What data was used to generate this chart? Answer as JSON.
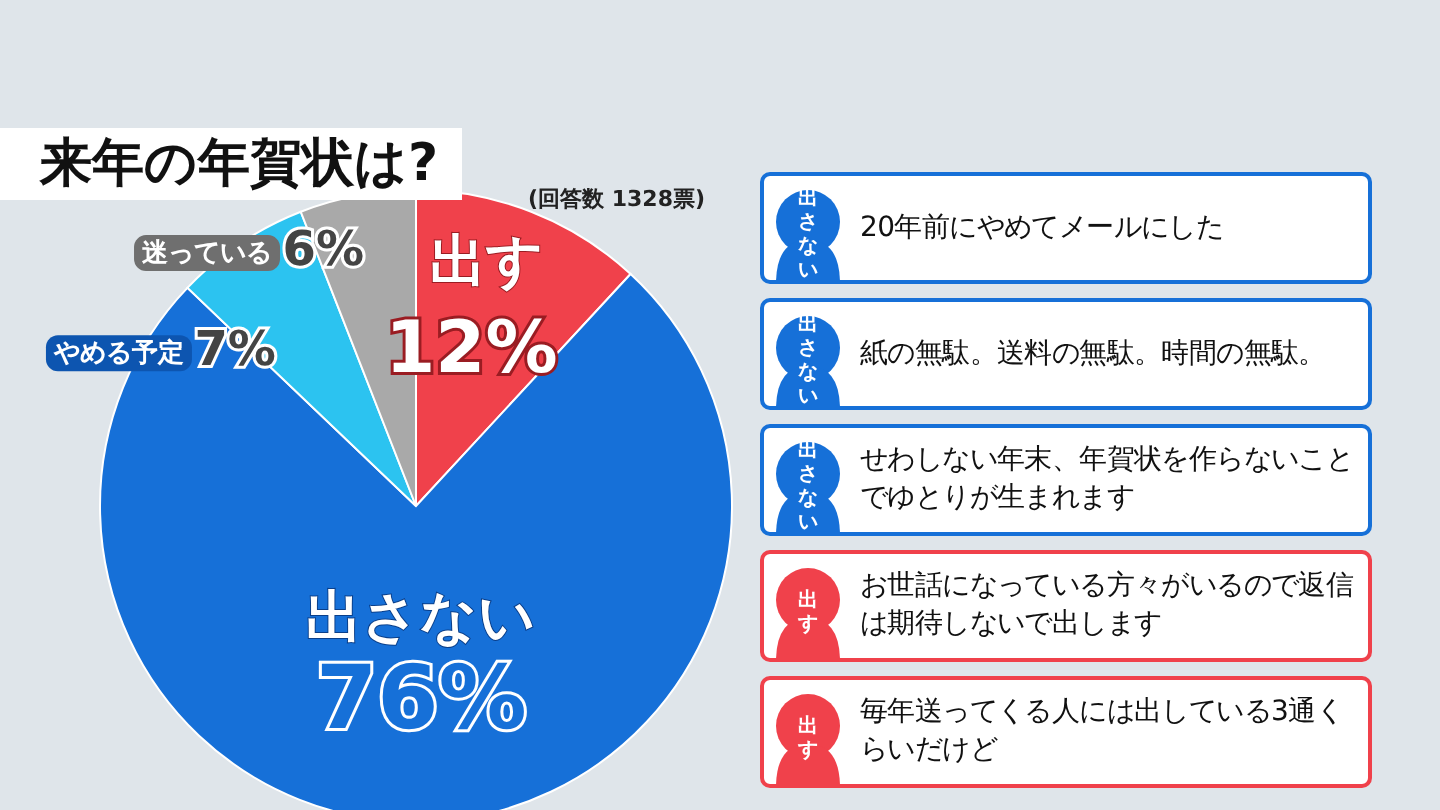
{
  "chart_data": [
    {
      "type": "pie",
      "title": "来年の年賀状は?",
      "subtitle": "(回答数 1328票)",
      "categories": [
        "出す",
        "出さない",
        "やめる予定",
        "迷っている"
      ],
      "values": [
        12,
        76,
        7,
        6
      ],
      "value_labels": [
        "12%",
        "76%",
        "7%",
        "6%"
      ],
      "colors": [
        "#f0414b",
        "#1670d8",
        "#2cc3f0",
        "#a9a9a9"
      ],
      "legend": false
    },
    {
      "type": "other",
      "categories": [
        "出さない",
        "出さない",
        "出さない",
        "出す",
        "出す"
      ],
      "colors": [
        "#1670d8",
        "#1670d8",
        "#1670d8",
        "#f0414b",
        "#f0414b"
      ],
      "annotations": [
        "20年前にやめてメールにした",
        "紙の無駄。送料の無駄。時間の無駄。",
        "せわしない年末、年賀状を作らないことでゆとりが生まれます",
        "お世話になっている方々がいるので返信は期待しないで出します",
        "毎年送ってくる人には出している3通くらいだけど"
      ]
    }
  ]
}
